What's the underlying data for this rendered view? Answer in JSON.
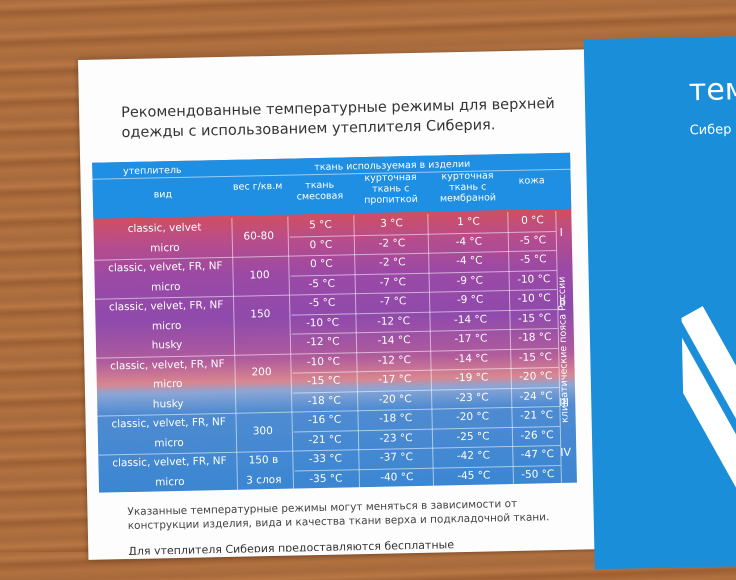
{
  "heading": "Рекомендованные температурные режимы для верхней одежды с использованием утеплителя Сиберия.",
  "panel": {
    "title": "тем",
    "subtitle": "Сибер"
  },
  "table": {
    "header": {
      "insulation": "утеплитель",
      "fabric_used": "ткань используемая в изделии",
      "type": "вид",
      "weight": "вес г/кв.м",
      "mixed": "ткань смесовая",
      "impregnated": "курточная ткань с пропиткой",
      "membrane": "курточная ткань с мембраной",
      "leather": "кожа"
    },
    "rows": [
      {
        "type": "classic, velvet",
        "weight": "60-80",
        "mixed": "5 °C",
        "impregnated": "3 °C",
        "membrane": "1 °C",
        "leather": "0 °C"
      },
      {
        "type": "micro",
        "weight": "",
        "mixed": "0 °C",
        "impregnated": "-2 °C",
        "membrane": "-4 °C",
        "leather": "-5 °C"
      },
      {
        "type": "classic, velvet, FR, NF",
        "weight": "100",
        "mixed": "0 °C",
        "impregnated": "-2 °C",
        "membrane": "-4 °C",
        "leather": "-5 °C"
      },
      {
        "type": "micro",
        "weight": "",
        "mixed": "-5 °C",
        "impregnated": "-7 °C",
        "membrane": "-9 °C",
        "leather": "-10 °C"
      },
      {
        "type": "classic, velvet, FR, NF",
        "weight": "150",
        "mixed": "-5 °C",
        "impregnated": "-7 °C",
        "membrane": "-9 °C",
        "leather": "-10 °C"
      },
      {
        "type": "micro",
        "weight": "",
        "mixed": "-10 °C",
        "impregnated": "-12 °C",
        "membrane": "-14 °C",
        "leather": "-15 °C"
      },
      {
        "type": "husky",
        "weight": "",
        "mixed": "-12 °C",
        "impregnated": "-14 °C",
        "membrane": "-17 °C",
        "leather": "-18 °C"
      },
      {
        "type": "classic, velvet, FR, NF",
        "weight": "200",
        "mixed": "-10 °C",
        "impregnated": "-12 °C",
        "membrane": "-14 °C",
        "leather": "-15 °C"
      },
      {
        "type": "micro",
        "weight": "",
        "mixed": "-15 °C",
        "impregnated": "-17 °C",
        "membrane": "-19 °C",
        "leather": "-20 °C"
      },
      {
        "type": "husky",
        "weight": "",
        "mixed": "-18 °C",
        "impregnated": "-20 °C",
        "membrane": "-23 °C",
        "leather": "-24 °C"
      },
      {
        "type": "classic, velvet, FR, NF",
        "weight": "300",
        "mixed": "-16 °C",
        "impregnated": "-18 °C",
        "membrane": "-20 °C",
        "leather": "-21 °C"
      },
      {
        "type": "micro",
        "weight": "",
        "mixed": "-21 °C",
        "impregnated": "-23 °C",
        "membrane": "-25 °C",
        "leather": "-26 °C"
      },
      {
        "type": "classic, velvet, FR, NF",
        "weight": "150 в",
        "mixed": "-33 °C",
        "impregnated": "-37 °C",
        "membrane": "-42 °C",
        "leather": "-47 °C"
      },
      {
        "type": "micro",
        "weight": "3 слоя",
        "mixed": "-35 °C",
        "impregnated": "-40 °C",
        "membrane": "-45 °C",
        "leather": "-50 °C"
      }
    ],
    "zones": [
      "I",
      "II",
      "III",
      "IV"
    ],
    "zone_label": "климатические пояса России"
  },
  "note": "Указанные температурные режимы могут меняться в зависимости от конструкции изделия, вида и качества ткани верха и подкладочной ткани.",
  "footer_text": "Для утеплителя Сиберия предоставляются бесплатные"
}
